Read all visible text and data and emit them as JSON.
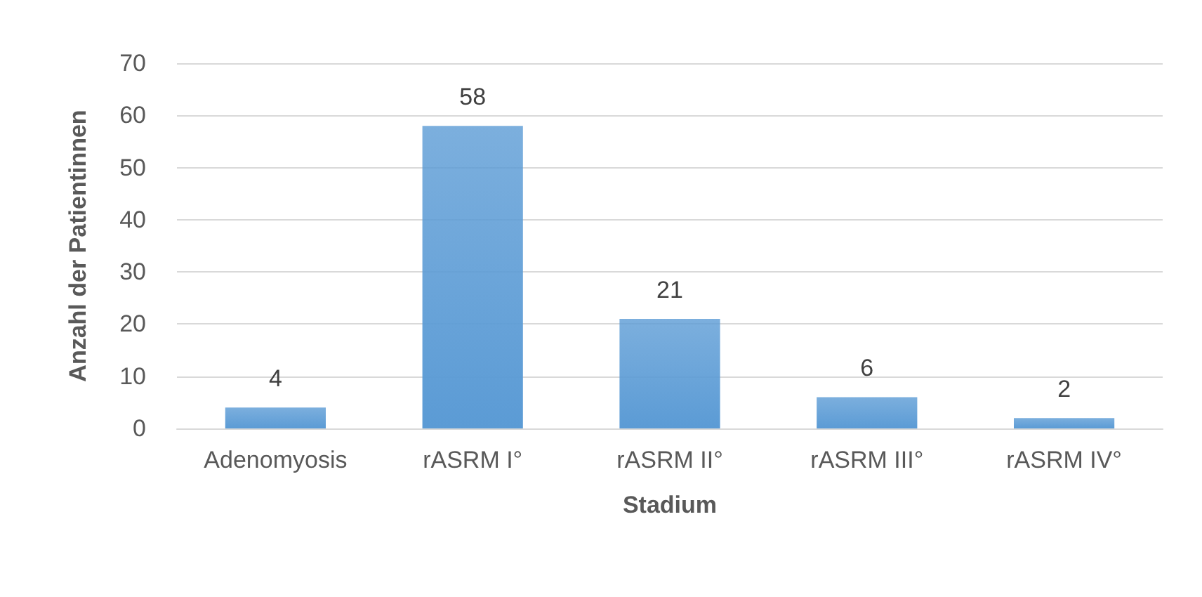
{
  "chart_data": {
    "type": "bar",
    "xlabel": "Stadium",
    "ylabel": "Anzahl der Patientinnen",
    "categories": [
      "Adenomyosis",
      "rASRM I°",
      "rASRM II°",
      "rASRM III°",
      "rASRM IV°"
    ],
    "values": [
      4,
      58,
      21,
      6,
      2
    ],
    "color": "#5b9bd5",
    "ylim": [
      0,
      70
    ],
    "yticks": [
      0,
      10,
      20,
      30,
      40,
      50,
      60,
      70
    ],
    "grid": "y",
    "data_labels": true
  }
}
